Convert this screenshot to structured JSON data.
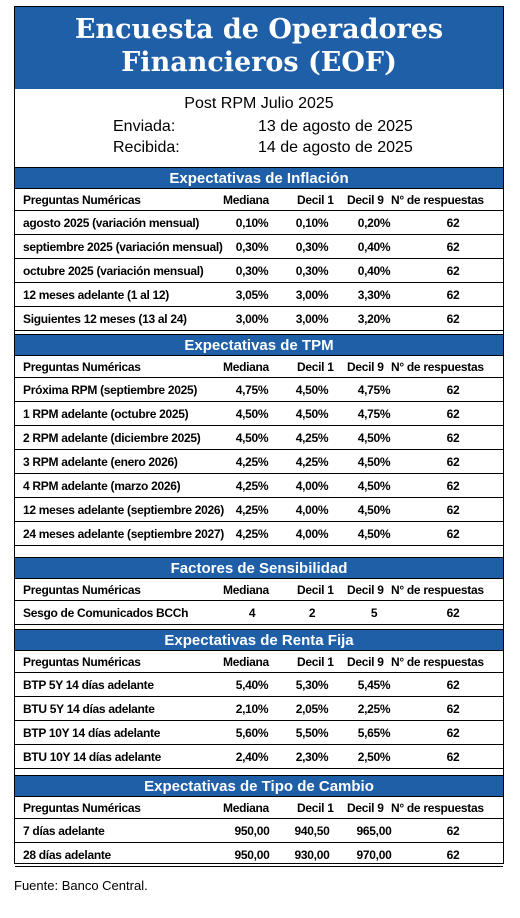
{
  "header": {
    "line1": "Encuesta de Operadores",
    "line2": "Financieros (EOF)"
  },
  "meta": {
    "subtitle": "Post RPM Julio 2025",
    "sent_label": "Enviada:",
    "sent_value": "13 de agosto de 2025",
    "received_label": "Recibida:",
    "received_value": "14 de agosto de 2025"
  },
  "columns": {
    "question": "Preguntas Numéricas",
    "median": "Mediana",
    "decile1": "Decil 1",
    "decile9": "Decil 9",
    "responses": "N° de respuestas"
  },
  "sections": [
    {
      "title": "Expectativas de Inflación",
      "rows": [
        {
          "q": "agosto 2025 (variación mensual)",
          "med": "0,10%",
          "d1": "0,10%",
          "d9": "0,20%",
          "n": "62"
        },
        {
          "q": "septiembre 2025 (variación mensual)",
          "med": "0,30%",
          "d1": "0,30%",
          "d9": "0,40%",
          "n": "62"
        },
        {
          "q": "octubre 2025 (variación mensual)",
          "med": "0,30%",
          "d1": "0,30%",
          "d9": "0,40%",
          "n": "62"
        },
        {
          "q": "12 meses adelante (1 al 12)",
          "med": "3,05%",
          "d1": "3,00%",
          "d9": "3,30%",
          "n": "62"
        },
        {
          "q": "Siguientes 12 meses (13 al 24)",
          "med": "3,00%",
          "d1": "3,00%",
          "d9": "3,20%",
          "n": "62"
        }
      ]
    },
    {
      "title": "Expectativas de TPM",
      "rows": [
        {
          "q": "Próxima RPM (septiembre 2025)",
          "med": "4,75%",
          "d1": "4,50%",
          "d9": "4,75%",
          "n": "62"
        },
        {
          "q": "1 RPM adelante (octubre 2025)",
          "med": "4,50%",
          "d1": "4,50%",
          "d9": "4,75%",
          "n": "62"
        },
        {
          "q": "2 RPM adelante (diciembre 2025)",
          "med": "4,50%",
          "d1": "4,25%",
          "d9": "4,50%",
          "n": "62"
        },
        {
          "q": "3 RPM adelante (enero 2026)",
          "med": "4,25%",
          "d1": "4,25%",
          "d9": "4,50%",
          "n": "62"
        },
        {
          "q": "4 RPM adelante (marzo 2026)",
          "med": "4,25%",
          "d1": "4,00%",
          "d9": "4,50%",
          "n": "62"
        },
        {
          "q": "12 meses adelante (septiembre 2026)",
          "med": "4,25%",
          "d1": "4,00%",
          "d9": "4,50%",
          "n": "62"
        },
        {
          "q": "24 meses adelante (septiembre 2027)",
          "med": "4,25%",
          "d1": "4,00%",
          "d9": "4,50%",
          "n": "62"
        }
      ]
    },
    {
      "title": "Factores de Sensibilidad",
      "rows": [
        {
          "q": "Sesgo de Comunicados BCCh",
          "med": "4",
          "d1": "2",
          "d9": "5",
          "n": "62"
        }
      ]
    },
    {
      "title": "Expectativas de Renta Fija",
      "rows": [
        {
          "q": "BTP 5Y 14 días adelante",
          "med": "5,40%",
          "d1": "5,30%",
          "d9": "5,45%",
          "n": "62"
        },
        {
          "q": "BTU 5Y 14 días adelante",
          "med": "2,10%",
          "d1": "2,05%",
          "d9": "2,25%",
          "n": "62"
        },
        {
          "q": "BTP 10Y 14 días adelante",
          "med": "5,60%",
          "d1": "5,50%",
          "d9": "5,65%",
          "n": "62"
        },
        {
          "q": "BTU 10Y 14 días adelante",
          "med": "2,40%",
          "d1": "2,30%",
          "d9": "2,50%",
          "n": "62"
        }
      ]
    },
    {
      "title": "Expectativas de Tipo de Cambio",
      "rows": [
        {
          "q": "7 días adelante",
          "med": "950,00",
          "d1": "940,50",
          "d9": "965,00",
          "n": "62"
        },
        {
          "q": "28 días adelante",
          "med": "950,00",
          "d1": "930,00",
          "d9": "970,00",
          "n": "62"
        }
      ]
    }
  ],
  "footer": "Fuente: Banco Central."
}
